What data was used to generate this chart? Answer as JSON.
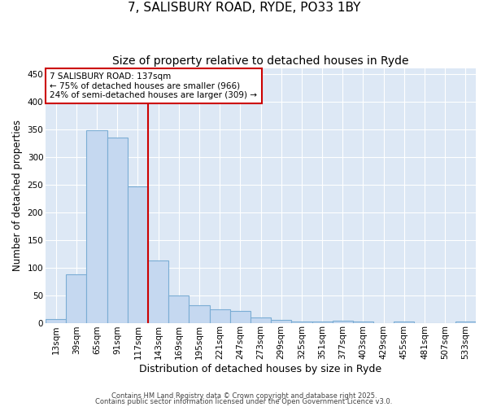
{
  "title1": "7, SALISBURY ROAD, RYDE, PO33 1BY",
  "title2": "Size of property relative to detached houses in Ryde",
  "xlabel": "Distribution of detached houses by size in Ryde",
  "ylabel": "Number of detached properties",
  "categories": [
    "13sqm",
    "39sqm",
    "65sqm",
    "91sqm",
    "117sqm",
    "143sqm",
    "169sqm",
    "195sqm",
    "221sqm",
    "247sqm",
    "273sqm",
    "299sqm",
    "325sqm",
    "351sqm",
    "377sqm",
    "403sqm",
    "429sqm",
    "455sqm",
    "481sqm",
    "507sqm",
    "533sqm"
  ],
  "values": [
    6,
    88,
    348,
    335,
    247,
    112,
    50,
    31,
    25,
    21,
    10,
    5,
    3,
    3,
    4,
    2,
    0,
    2,
    0,
    0,
    2
  ],
  "bar_color": "#c5d8f0",
  "bar_edge_color": "#7badd4",
  "bar_alpha": 1.0,
  "vline_x": 4.5,
  "vline_color": "#cc0000",
  "annotation_line1": "7 SALISBURY ROAD: 137sqm",
  "annotation_line2": "← 75% of detached houses are smaller (966)",
  "annotation_line3": "24% of semi-detached houses are larger (309) →",
  "annotation_box_color": "#ffffff",
  "annotation_box_edge": "#cc0000",
  "annotation_fontsize": 7.5,
  "background_color": "#ffffff",
  "plot_bg_color": "#dde8f5",
  "ylim": [
    0,
    460
  ],
  "yticks": [
    0,
    50,
    100,
    150,
    200,
    250,
    300,
    350,
    400,
    450
  ],
  "footer1": "Contains HM Land Registry data © Crown copyright and database right 2025.",
  "footer2": "Contains public sector information licensed under the Open Government Licence v3.0.",
  "grid_color": "#ffffff",
  "title_fontsize": 11,
  "subtitle_fontsize": 10,
  "axis_label_fontsize": 9,
  "tick_fontsize": 7.5,
  "ylabel_fontsize": 8.5
}
